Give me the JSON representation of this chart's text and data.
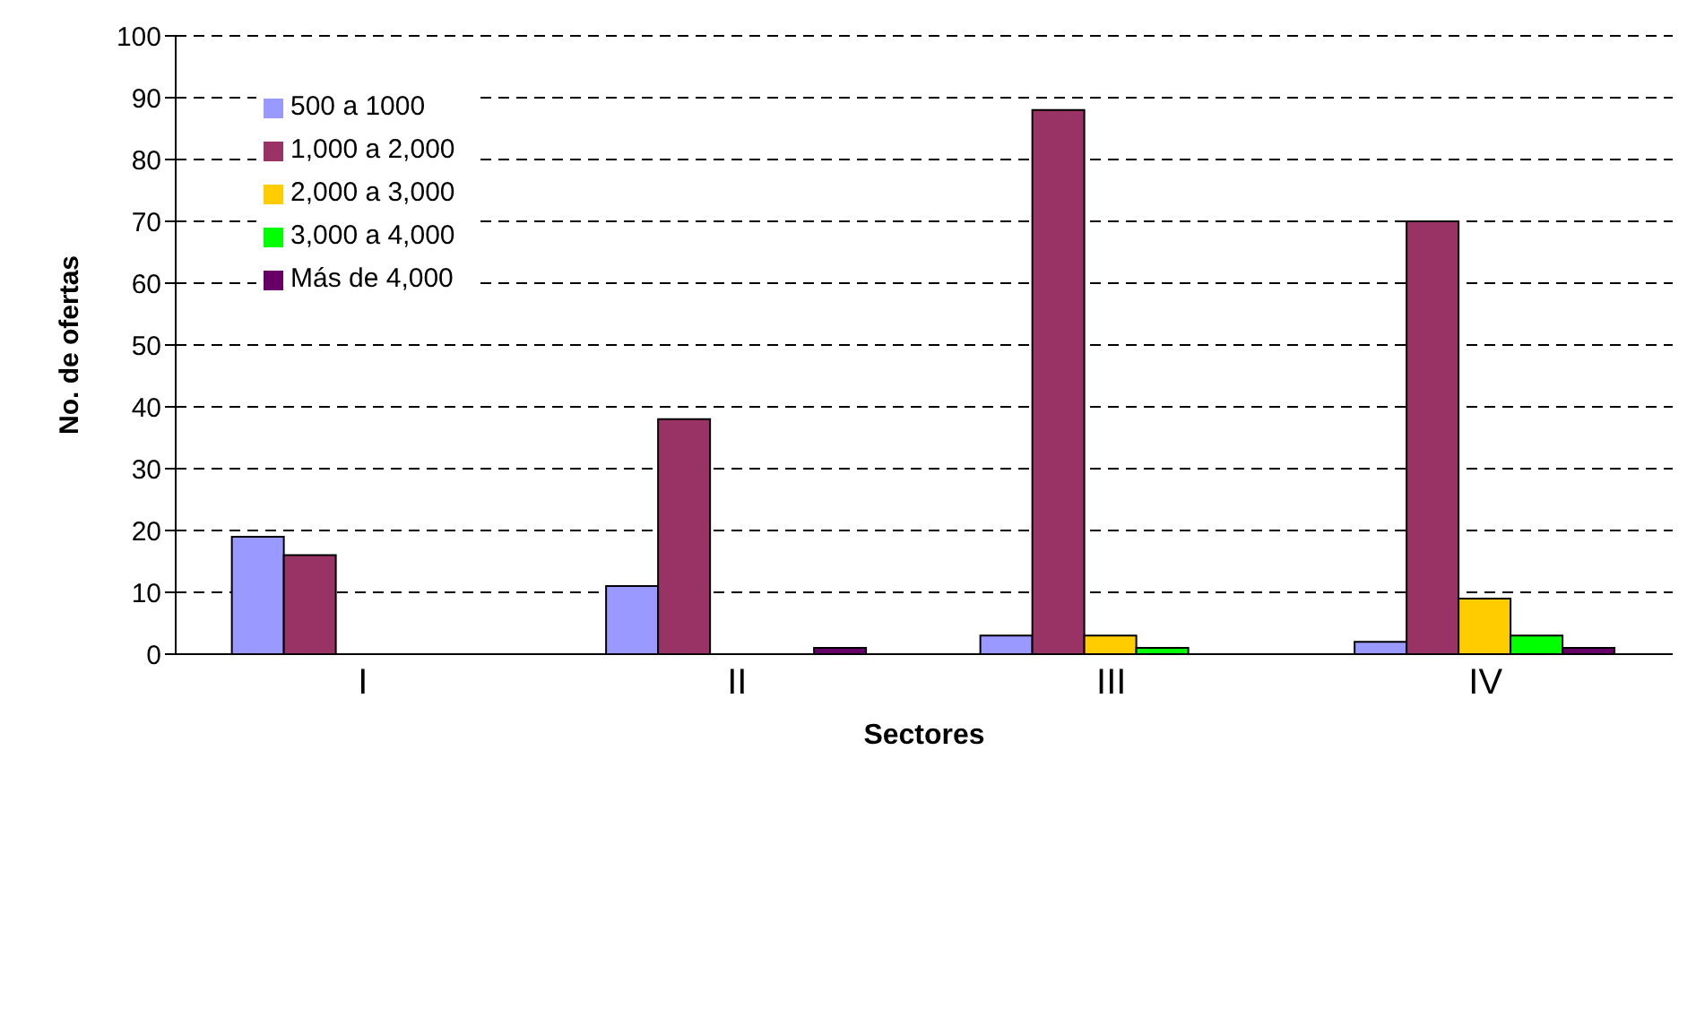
{
  "chart_data": {
    "type": "bar",
    "xlabel": "Sectores",
    "ylabel": "No. de ofertas",
    "categories": [
      "I",
      "II",
      "III",
      "IV"
    ],
    "series": [
      {
        "name": "500 a 1000",
        "color": "#9999ff",
        "values": [
          19,
          11,
          3,
          2
        ]
      },
      {
        "name": "1,000 a 2,000",
        "color": "#993366",
        "values": [
          16,
          38,
          88,
          70
        ]
      },
      {
        "name": "2,000 a 3,000",
        "color": "#ffcc00",
        "values": [
          0,
          0,
          3,
          9
        ]
      },
      {
        "name": "3,000 a 4,000",
        "color": "#00ff00",
        "values": [
          0,
          0,
          1,
          3
        ]
      },
      {
        "name": "Más de 4,000",
        "color": "#660066",
        "values": [
          0,
          1,
          0,
          1
        ]
      }
    ],
    "ylim": [
      0,
      100
    ],
    "yticks": [
      0,
      10,
      20,
      30,
      40,
      50,
      60,
      70,
      80,
      90,
      100
    ],
    "grid": "y",
    "legend": "top left"
  }
}
